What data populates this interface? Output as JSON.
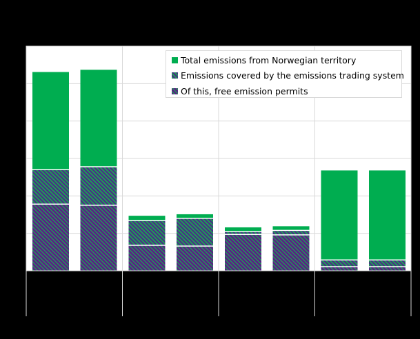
{
  "chart_data": {
    "type": "bar",
    "stacked_overlay": true,
    "title": "",
    "xlabel": "",
    "ylabel": "",
    "ylim": [
      0,
      6
    ],
    "grid": true,
    "legend_position": "top-right inside",
    "groups": 4,
    "bars_per_group": 2,
    "categories": [
      "",
      "",
      "",
      "",
      "",
      "",
      "",
      ""
    ],
    "series": [
      {
        "name": "Total emissions from Norwegian territory",
        "color": "#00ad50",
        "pattern": "solid",
        "values": [
          5.31,
          5.37,
          1.47,
          1.51,
          1.16,
          1.19,
          2.68,
          2.68
        ]
      },
      {
        "name": "Emissions covered by the emissions trading system",
        "color": "#1b6f7a",
        "pattern": "hatch-green-purple",
        "values": [
          2.7,
          2.78,
          1.34,
          1.4,
          1.05,
          1.08,
          0.29,
          0.29
        ]
      },
      {
        "name": "Of this, free emission permits",
        "color": "#5a1f86",
        "pattern": "hatch-purple-green",
        "values": [
          1.78,
          1.75,
          0.68,
          0.66,
          0.97,
          0.96,
          0.11,
          0.11
        ]
      }
    ]
  },
  "legend": {
    "items": [
      {
        "label": "Total emissions from Norwegian territory",
        "swatch": "solid-green"
      },
      {
        "label": "Emissions covered by the emissions trading system",
        "swatch": "hatch-teal"
      },
      {
        "label": "Of this, free emission permits",
        "swatch": "hatch-purple"
      }
    ]
  },
  "colors": {
    "background": "#000000",
    "plot_background": "#ffffff",
    "gridline": "#d9d9d9",
    "green": "#00ad50",
    "purple": "#5a1f86",
    "teal_stripe": "#2a9a5a",
    "divider": "#d9d9d9"
  }
}
